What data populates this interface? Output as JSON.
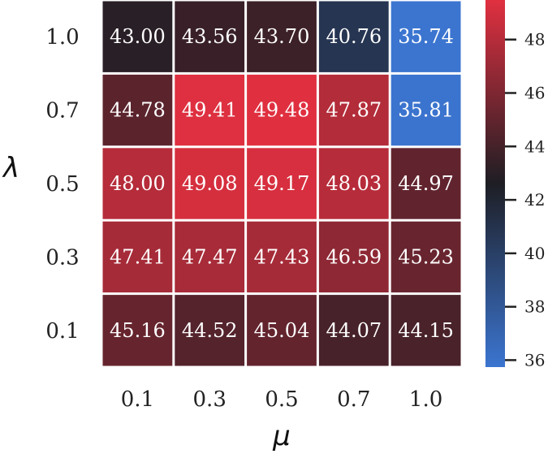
{
  "chart_data": {
    "type": "heatmap",
    "xlabel": "μ",
    "ylabel": "λ",
    "x_categories": [
      "0.1",
      "0.3",
      "0.5",
      "0.7",
      "1.0"
    ],
    "y_categories": [
      "1.0",
      "0.7",
      "0.5",
      "0.3",
      "0.1"
    ],
    "values": [
      [
        43.0,
        43.56,
        43.7,
        40.76,
        35.74
      ],
      [
        44.78,
        49.41,
        49.48,
        47.87,
        35.81
      ],
      [
        48.0,
        49.08,
        49.17,
        48.03,
        44.97
      ],
      [
        47.41,
        47.47,
        47.43,
        46.59,
        45.23
      ],
      [
        45.16,
        44.52,
        45.04,
        44.07,
        44.15
      ]
    ],
    "value_format": "2-decimal",
    "colorbar": {
      "min": 35.74,
      "max": 49.48,
      "ticks": [
        36,
        38,
        40,
        42,
        44,
        46,
        48
      ]
    },
    "colormap": {
      "low": "#3b75d0",
      "mid": "#1e1e24",
      "high": "#e03040"
    }
  }
}
